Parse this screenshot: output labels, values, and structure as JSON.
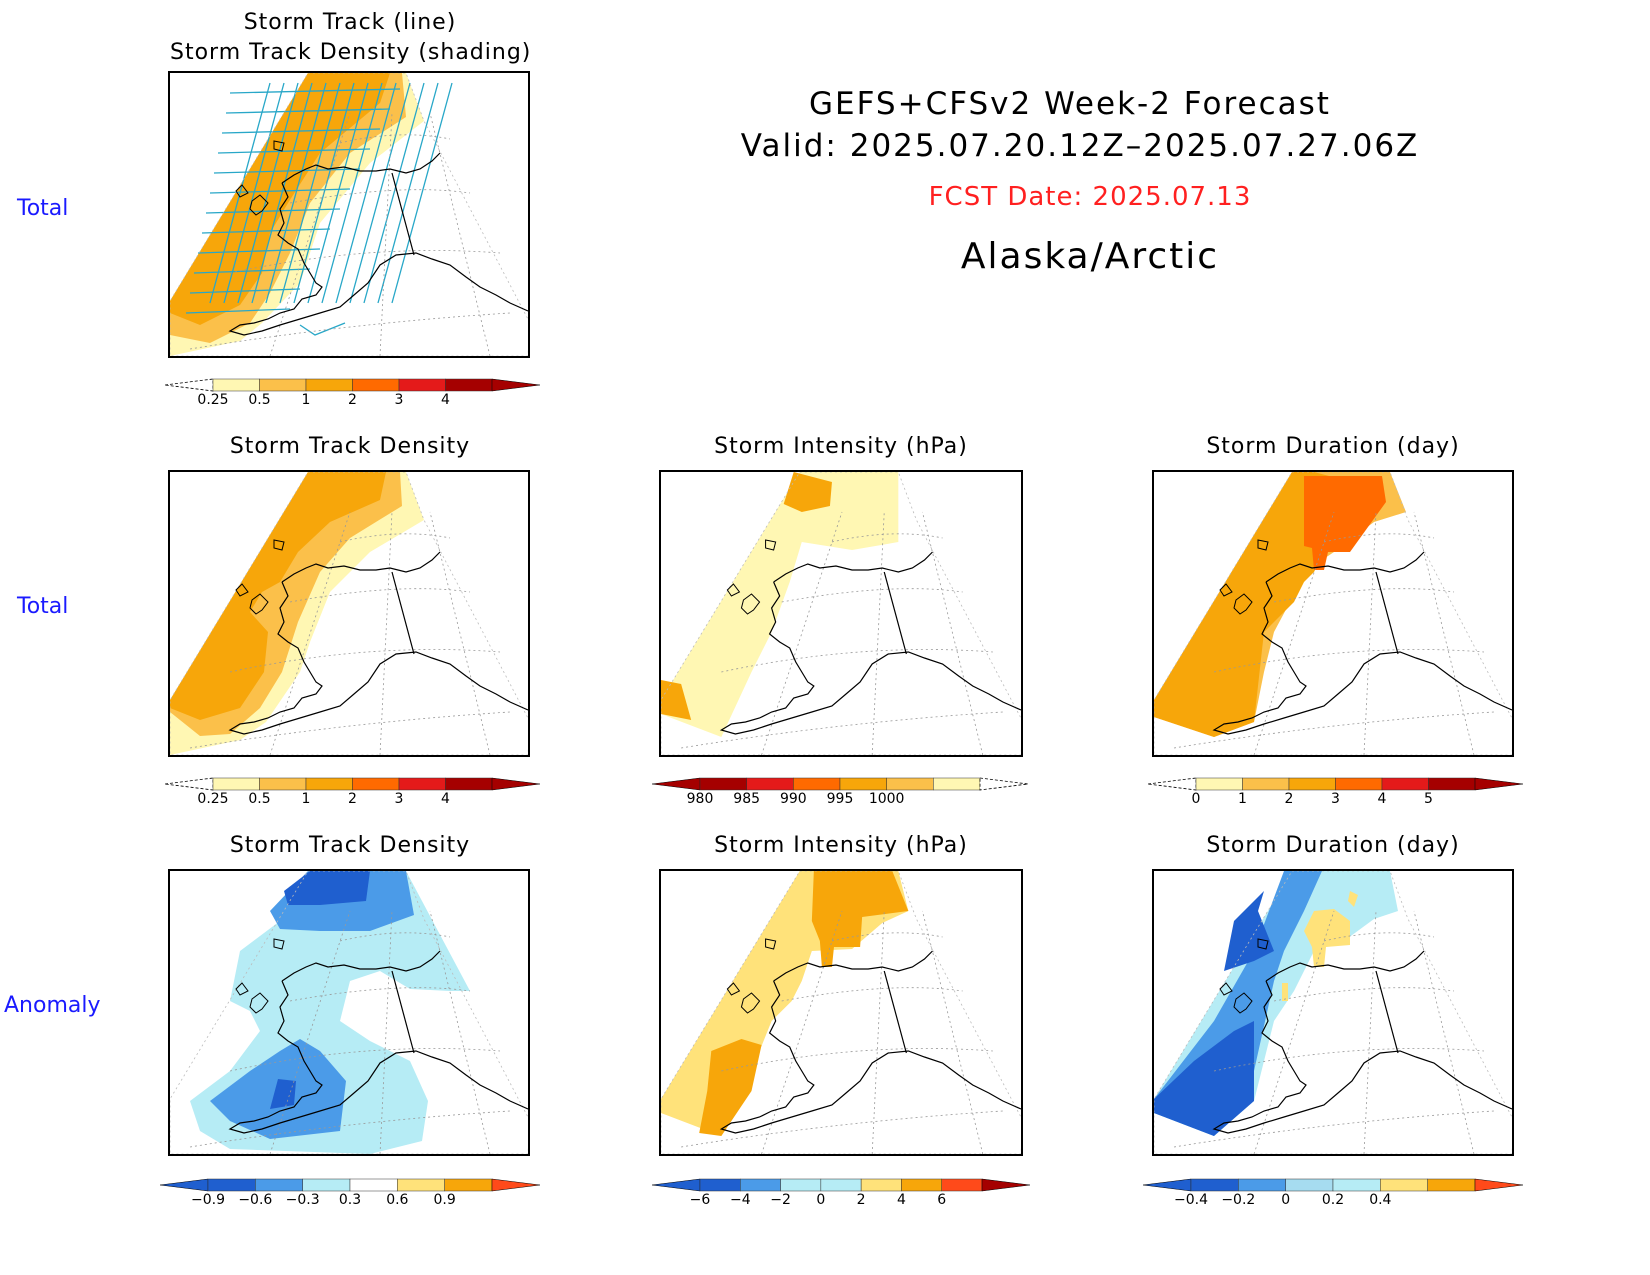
{
  "header": {
    "line1": "GEFS+CFSv2 Week-2 Forecast",
    "line2": "Valid: 2025.07.20.12Z–2025.07.27.06Z",
    "fcst": "FCST Date: 2025.07.13",
    "region": "Alaska/Arctic"
  },
  "rows": {
    "total_top": "Total",
    "total_mid": "Total",
    "anomaly": "Anomaly"
  },
  "panels": {
    "p1": {
      "title": "Storm Track (line)\nStorm Track Density (shading)"
    },
    "p2": {
      "title": "Storm Track Density"
    },
    "p3": {
      "title": "Storm Intensity (hPa)"
    },
    "p4": {
      "title": "Storm Duration (day)"
    },
    "p5": {
      "title": "Storm Track Density"
    },
    "p6": {
      "title": "Storm Intensity (hPa)"
    },
    "p7": {
      "title": "Storm Duration (day)"
    }
  },
  "colorbars": {
    "cb1": {
      "labels": [
        "0.25",
        "0.5",
        "1",
        "2",
        "3",
        "4"
      ]
    },
    "cb2": {
      "labels": [
        "0.25",
        "0.5",
        "1",
        "2",
        "3",
        "4"
      ]
    },
    "cb3": {
      "labels": [
        "980",
        "985",
        "990",
        "995",
        "1000"
      ]
    },
    "cb4": {
      "labels": [
        "0",
        "1",
        "2",
        "3",
        "4",
        "5"
      ]
    },
    "cb5": {
      "labels": [
        "−0.9",
        "−0.6",
        "−0.3",
        "0.3",
        "0.6",
        "0.9"
      ]
    },
    "cb6": {
      "labels": [
        "−6",
        "−4",
        "−2",
        "0",
        "2",
        "4",
        "6"
      ]
    },
    "cb7": {
      "labels": [
        "−0.4",
        "−0.2",
        "0",
        "0.2",
        "0.4"
      ]
    }
  },
  "colors": {
    "density_total": [
      "#ffffff",
      "#fff7b3",
      "#fbc04a",
      "#f7a60a",
      "#ff6a00",
      "#e41a1a",
      "#a50000"
    ],
    "intensity_total": [
      "#a50000",
      "#e41a1a",
      "#ff6a00",
      "#f7a60a",
      "#fbc04a",
      "#fff7b3",
      "#ffffff"
    ],
    "anomaly": [
      "#1f5fcf",
      "#4b9be8",
      "#a6dcf0",
      "#b6ecf5",
      "#ffffff",
      "#ffe27a",
      "#f7a60a",
      "#ff4a1a"
    ],
    "storm_track_line": "#28a7c8",
    "fcst_text": "#ff2020",
    "row_label": "#1a1aff"
  }
}
